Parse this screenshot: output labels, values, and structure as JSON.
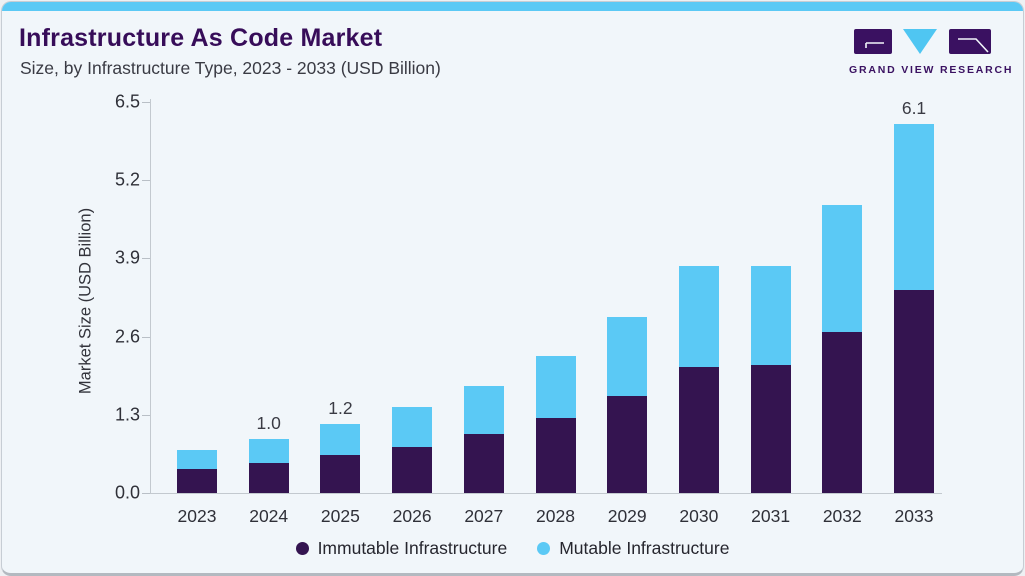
{
  "header": {
    "title": "Infrastructure As Code Market",
    "subtitle": "Size, by Infrastructure Type, 2023 - 2033 (USD Billion)"
  },
  "logo": {
    "text": "GRAND VIEW RESEARCH",
    "mark_purple": "#3a1161",
    "mark_blue": "#4fc6f2"
  },
  "chart_data": {
    "type": "bar",
    "stacked": true,
    "title": "Infrastructure As Code Market Size, by Infrastructure Type, 2023 - 2033 (USD Billion)",
    "xlabel": "",
    "ylabel": "Market Size (USD Billion)",
    "ylim": [
      0,
      6.5
    ],
    "grid": false,
    "legend_position": "bottom",
    "ytick_values": [
      0,
      1.3,
      2.6,
      3.9,
      5.2,
      6.5
    ],
    "ytick_labels": [
      "0.0",
      "1.3",
      "2.6",
      "3.9",
      "5.2",
      "6.5"
    ],
    "categories": [
      "2023",
      "2024",
      "2025",
      "2026",
      "2027",
      "2028",
      "2029",
      "2030",
      "2031",
      "2032",
      "2033"
    ],
    "series": [
      {
        "name": "Immutable Infrastructure",
        "color": "#341450",
        "values": [
          0.4,
          0.5,
          0.63,
          0.77,
          0.98,
          1.25,
          1.62,
          2.1,
          2.12,
          2.67,
          3.38
        ]
      },
      {
        "name": "Mutable Infrastructure",
        "color": "#5bc9f5",
        "values": [
          0.32,
          0.4,
          0.52,
          0.66,
          0.8,
          1.02,
          1.3,
          1.67,
          1.65,
          2.11,
          2.75
        ]
      }
    ],
    "total_labels": [
      {
        "category": "2024",
        "label": "1.0"
      },
      {
        "category": "2025",
        "label": "1.2"
      },
      {
        "category": "2033",
        "label": "6.1"
      }
    ]
  },
  "colors": {
    "card_background": "#f1f6fa",
    "top_strip": "#5bc9f5",
    "title_text": "#370d59",
    "axis_line": "#c3c9cf",
    "tick_text": "#2f3038"
  }
}
